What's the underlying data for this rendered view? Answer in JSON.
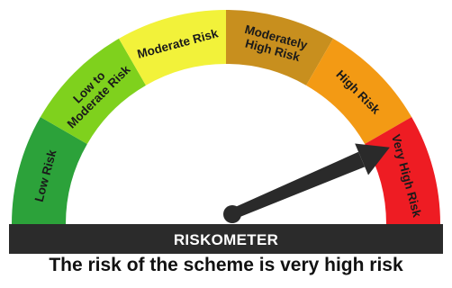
{
  "riskometer": {
    "bar_label": "RISKOMETER",
    "caption": "The risk of the scheme is very high risk",
    "selected_level": "Very High Risk",
    "segments": [
      {
        "lines": [
          "Low Risk"
        ],
        "color": "#2ca23a"
      },
      {
        "lines": [
          "Low to",
          "Moderate Risk"
        ],
        "color": "#7fd11d"
      },
      {
        "lines": [
          "Moderate Risk"
        ],
        "color": "#f2f23a"
      },
      {
        "lines": [
          "Moderately",
          "High Risk"
        ],
        "color": "#c88f1e"
      },
      {
        "lines": [
          "High Risk"
        ],
        "color": "#f39a14"
      },
      {
        "lines": [
          "Very High Risk"
        ],
        "color": "#ee1c23"
      }
    ],
    "needle_color": "#2a2a2a",
    "bar_color": "#2b2b2b"
  }
}
